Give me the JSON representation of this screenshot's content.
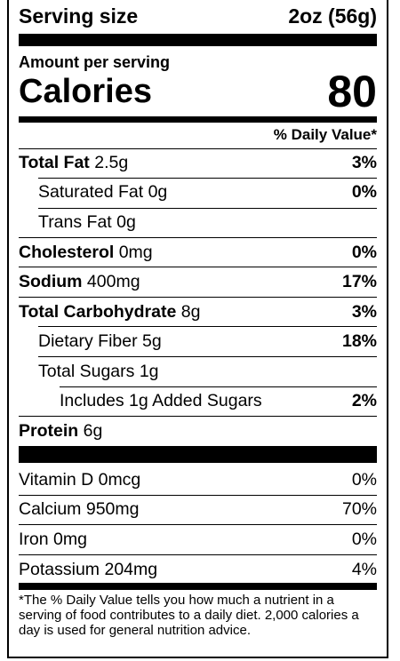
{
  "serving": {
    "label": "Serving size",
    "value": "2oz (56g)"
  },
  "amount_per_serving": "Amount per serving",
  "calories": {
    "label": "Calories",
    "value": "80"
  },
  "dv_header": "% Daily Value*",
  "nutrients": [
    {
      "name": "Total Fat",
      "amount": "2.5g",
      "dv": "3%"
    },
    {
      "name": "Saturated Fat",
      "amount": "0g",
      "dv": "0%"
    },
    {
      "name": "Trans Fat",
      "amount": "0g",
      "dv": ""
    },
    {
      "name": "Cholesterol",
      "amount": "0mg",
      "dv": "0%"
    },
    {
      "name": "Sodium",
      "amount": "400mg",
      "dv": "17%"
    },
    {
      "name": "Total Carbohydrate",
      "amount": "8g",
      "dv": "3%"
    },
    {
      "name": "Dietary Fiber",
      "amount": "5g",
      "dv": "18%"
    },
    {
      "name": "Total Sugars",
      "amount": "1g",
      "dv": ""
    },
    {
      "name": "Includes 1g Added Sugars",
      "amount": "",
      "dv": "2%"
    },
    {
      "name": "Protein",
      "amount": "6g",
      "dv": ""
    }
  ],
  "vitamins": [
    {
      "name": "Vitamin D",
      "amount": "0mcg",
      "dv": "0%"
    },
    {
      "name": "Calcium",
      "amount": "950mg",
      "dv": "70%"
    },
    {
      "name": "Iron",
      "amount": "0mg",
      "dv": "0%"
    },
    {
      "name": "Potassium",
      "amount": "204mg",
      "dv": "4%"
    }
  ],
  "footnote": "*The % Daily Value tells you how much a nutrient in a serving of food contributes to a daily diet. 2,000 calories a day is used for general nutrition advice."
}
